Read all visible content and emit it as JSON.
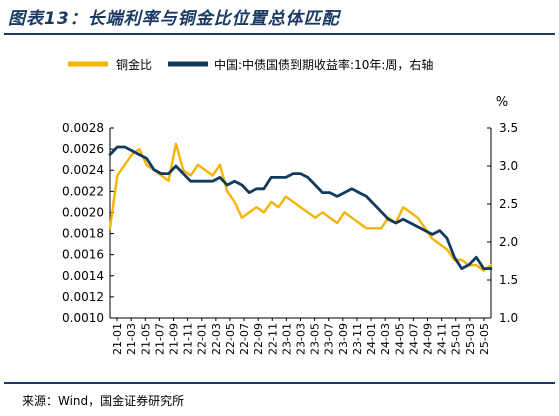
{
  "figure": {
    "title": "图表13：长端利率与铜金比位置总体匹配",
    "source": "来源：Wind，国金证券研究所"
  },
  "colors": {
    "title": "#1a3a63",
    "copper_gold": "#f5b400",
    "cgb10y": "#123a5c",
    "axis": "#000000"
  },
  "chart_data": {
    "type": "line",
    "legend_position": "top",
    "grid": false,
    "right_axis_unit": "%",
    "x_tick_labels": [
      "21-01",
      "21-03",
      "21-05",
      "21-07",
      "21-09",
      "21-11",
      "22-01",
      "22-03",
      "22-05",
      "22-07",
      "22-09",
      "22-11",
      "23-01",
      "23-03",
      "23-05",
      "23-07",
      "23-09",
      "23-11",
      "24-01",
      "24-03",
      "24-05",
      "24-07",
      "24-09",
      "24-11",
      "25-01",
      "25-03",
      "25-05"
    ],
    "left_axis": {
      "ylim": [
        0.001,
        0.0028
      ],
      "ticks": [
        "0.0010",
        "0.0012",
        "0.0014",
        "0.0016",
        "0.0018",
        "0.0020",
        "0.0022",
        "0.0024",
        "0.0026",
        "0.0028"
      ]
    },
    "right_axis": {
      "ylim": [
        1.0,
        3.5
      ],
      "ticks": [
        "1.0",
        "1.5",
        "2.0",
        "2.5",
        "3.0",
        "3.5"
      ]
    },
    "x_range": [
      "2021-01",
      "2025-05"
    ],
    "series": [
      {
        "name": "铜金比",
        "axis": "left",
        "x": [
          "2021-01",
          "2021-02",
          "2021-03",
          "2021-04",
          "2021-05",
          "2021-06",
          "2021-07",
          "2021-08",
          "2021-09",
          "2021-10",
          "2021-11",
          "2021-12",
          "2022-01",
          "2022-02",
          "2022-03",
          "2022-04",
          "2022-05",
          "2022-06",
          "2022-07",
          "2022-08",
          "2022-09",
          "2022-10",
          "2022-11",
          "2022-12",
          "2023-01",
          "2023-02",
          "2023-03",
          "2023-04",
          "2023-05",
          "2023-06",
          "2023-07",
          "2023-08",
          "2023-09",
          "2023-10",
          "2023-11",
          "2023-12",
          "2024-01",
          "2024-02",
          "2024-03",
          "2024-04",
          "2024-05",
          "2024-06",
          "2024-07",
          "2024-08",
          "2024-09",
          "2024-10",
          "2024-11",
          "2024-12",
          "2025-01",
          "2025-02",
          "2025-03",
          "2025-04",
          "2025-05"
        ],
        "values": [
          0.00185,
          0.00235,
          0.00245,
          0.00255,
          0.0026,
          0.00245,
          0.0024,
          0.00235,
          0.0023,
          0.00265,
          0.0024,
          0.00235,
          0.00245,
          0.0024,
          0.00235,
          0.00245,
          0.0022,
          0.0021,
          0.00195,
          0.002,
          0.00205,
          0.002,
          0.0021,
          0.00205,
          0.00215,
          0.0021,
          0.00205,
          0.002,
          0.00195,
          0.002,
          0.00195,
          0.0019,
          0.002,
          0.00195,
          0.0019,
          0.00185,
          0.00185,
          0.00185,
          0.00195,
          0.0019,
          0.00205,
          0.002,
          0.00195,
          0.00185,
          0.00175,
          0.0017,
          0.00165,
          0.00155,
          0.00155,
          0.0015,
          0.0015,
          0.00145,
          0.0015
        ]
      },
      {
        "name": "中国:中债国债到期收益率:10年:周，右轴",
        "axis": "right",
        "x": [
          "2021-01",
          "2021-02",
          "2021-03",
          "2021-04",
          "2021-05",
          "2021-06",
          "2021-07",
          "2021-08",
          "2021-09",
          "2021-10",
          "2021-11",
          "2021-12",
          "2022-01",
          "2022-02",
          "2022-03",
          "2022-04",
          "2022-05",
          "2022-06",
          "2022-07",
          "2022-08",
          "2022-09",
          "2022-10",
          "2022-11",
          "2022-12",
          "2023-01",
          "2023-02",
          "2023-03",
          "2023-04",
          "2023-05",
          "2023-06",
          "2023-07",
          "2023-08",
          "2023-09",
          "2023-10",
          "2023-11",
          "2023-12",
          "2024-01",
          "2024-02",
          "2024-03",
          "2024-04",
          "2024-05",
          "2024-06",
          "2024-07",
          "2024-08",
          "2024-09",
          "2024-10",
          "2024-11",
          "2024-12",
          "2025-01",
          "2025-02",
          "2025-03",
          "2025-04",
          "2025-05"
        ],
        "values": [
          3.15,
          3.25,
          3.25,
          3.2,
          3.15,
          3.1,
          2.95,
          2.9,
          2.9,
          3.0,
          2.9,
          2.8,
          2.8,
          2.8,
          2.8,
          2.85,
          2.75,
          2.8,
          2.75,
          2.65,
          2.7,
          2.7,
          2.85,
          2.85,
          2.85,
          2.9,
          2.9,
          2.85,
          2.75,
          2.65,
          2.65,
          2.6,
          2.65,
          2.7,
          2.65,
          2.6,
          2.5,
          2.4,
          2.3,
          2.25,
          2.3,
          2.25,
          2.2,
          2.15,
          2.1,
          2.15,
          2.05,
          1.8,
          1.65,
          1.7,
          1.8,
          1.65,
          1.65
        ]
      }
    ]
  }
}
